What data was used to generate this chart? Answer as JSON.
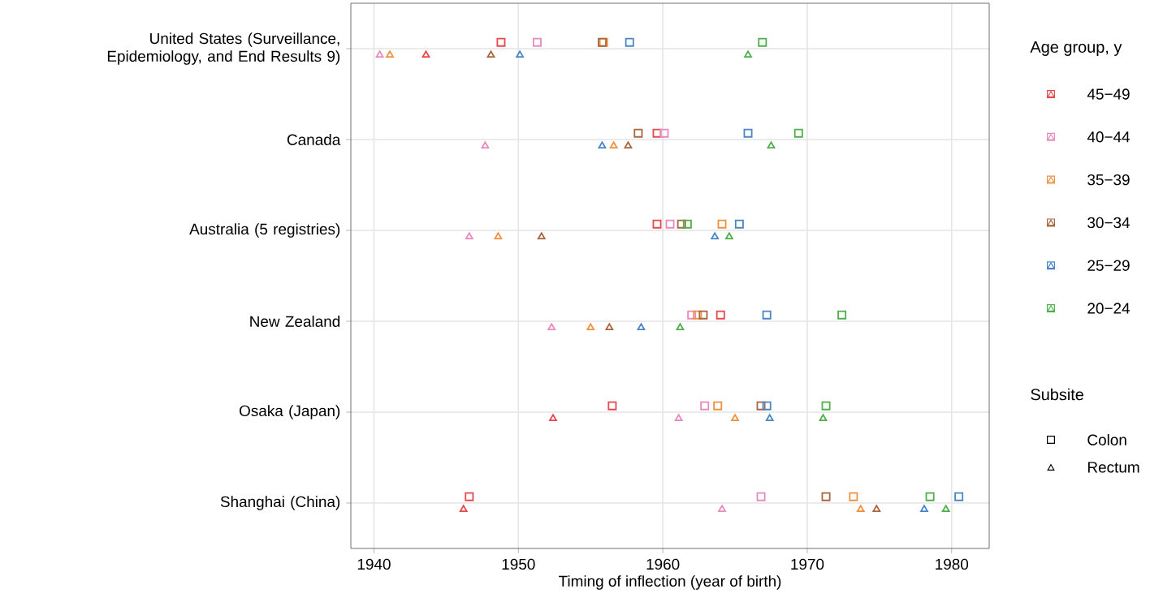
{
  "chart_data": {
    "type": "scatter",
    "orientation": "horizontal",
    "categories": [
      "United States (Surveillance, Epidemiology, and End Results 9)",
      "Canada",
      "Australia (5 registries)",
      "New Zealand",
      "Osaka (Japan)",
      "Shanghai (China)"
    ],
    "xlabel": "Timing of inflection (year of birth)",
    "legend_title": "Age group, y",
    "legend": "right",
    "grid": true,
    "xlim": [
      1938.4,
      1982.6
    ],
    "xticks": [
      1940,
      1950,
      1960,
      1970,
      1980
    ],
    "annotations": [
      "Subsite",
      "Colon",
      "Rectum"
    ],
    "series": [
      {
        "name": "45−49",
        "color": "#e5484d",
        "marker": "square",
        "values": [
          1948.8,
          1959.6,
          1959.6,
          1964.0,
          1956.5,
          1946.6
        ]
      },
      {
        "name": "40−44",
        "color": "#e889c0",
        "marker": "square",
        "values": [
          1951.3,
          1960.1,
          1960.5,
          1962.0,
          1962.9,
          1966.8
        ]
      },
      {
        "name": "35−39",
        "color": "#f0913f",
        "marker": "square",
        "values": [
          1955.9,
          null,
          1964.1,
          1962.4,
          1963.8,
          1973.2
        ]
      },
      {
        "name": "30−34",
        "color": "#a8653e",
        "marker": "square",
        "values": [
          1955.8,
          1958.3,
          1961.3,
          1962.8,
          1966.8,
          1971.3
        ]
      },
      {
        "name": "25−29",
        "color": "#4a86c5",
        "marker": "square",
        "values": [
          1957.7,
          1965.9,
          1965.3,
          1967.2,
          1967.2,
          1980.5
        ]
      },
      {
        "name": "20−24",
        "color": "#4daf4a",
        "marker": "square",
        "values": [
          1966.9,
          1969.4,
          1961.7,
          1972.4,
          1971.3,
          1978.5
        ]
      },
      {
        "color": "#e5484d",
        "marker": "triangle",
        "values": [
          1943.6,
          null,
          null,
          null,
          1952.4,
          1946.2
        ]
      },
      {
        "color": "#e889c0",
        "marker": "triangle",
        "values": [
          1940.4,
          1947.7,
          1946.6,
          1952.3,
          1961.1,
          1964.1
        ]
      },
      {
        "color": "#f0913f",
        "marker": "triangle",
        "values": [
          1941.1,
          1956.6,
          1948.6,
          1955.0,
          1965.0,
          1973.7
        ]
      },
      {
        "color": "#a8653e",
        "marker": "triangle",
        "values": [
          1948.1,
          1957.6,
          1951.6,
          1956.3,
          null,
          1974.8
        ]
      },
      {
        "color": "#4a86c5",
        "marker": "triangle",
        "values": [
          1950.1,
          1955.8,
          1963.6,
          1958.5,
          1967.4,
          1978.1
        ]
      },
      {
        "color": "#4daf4a",
        "marker": "triangle",
        "values": [
          1965.9,
          1967.5,
          1964.6,
          1961.2,
          1971.1,
          1979.6
        ]
      }
    ]
  }
}
